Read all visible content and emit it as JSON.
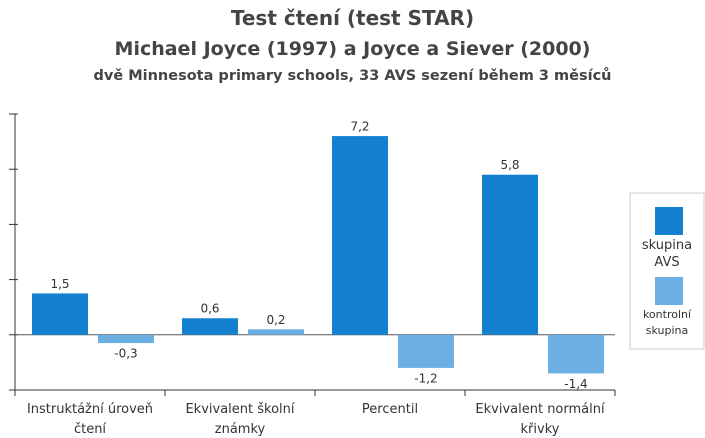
{
  "chart_data": {
    "type": "bar",
    "title": "Test čtení (test STAR)",
    "subtitle": "Michael Joyce (1997) a Joyce a Siever (2000)",
    "subtitle2": "dvě Minnesota primary schools, 33 AVS sezení během 3 měsíců",
    "categories": [
      "Instruktážní úroveň čtení",
      "Ekvivalent školní známky",
      "Percentil",
      "Ekvivalent normální křivky"
    ],
    "series": [
      {
        "name": "skupina AVS",
        "color": "#1381d0",
        "values": [
          1.5,
          0.6,
          7.2,
          5.8
        ],
        "value_labels": [
          "1,5",
          "0,6",
          "7,2",
          "5,8"
        ]
      },
      {
        "name": "kontrolní skupina",
        "color": "#6cb0e3",
        "values": [
          -0.3,
          0.2,
          -1.2,
          -1.4
        ],
        "value_labels": [
          "-0,3",
          "0,2",
          "-1,2",
          "-1,4"
        ]
      }
    ],
    "ylim": [
      -2,
      8
    ],
    "yticks": [
      -2,
      0,
      2,
      4,
      6,
      8
    ]
  }
}
